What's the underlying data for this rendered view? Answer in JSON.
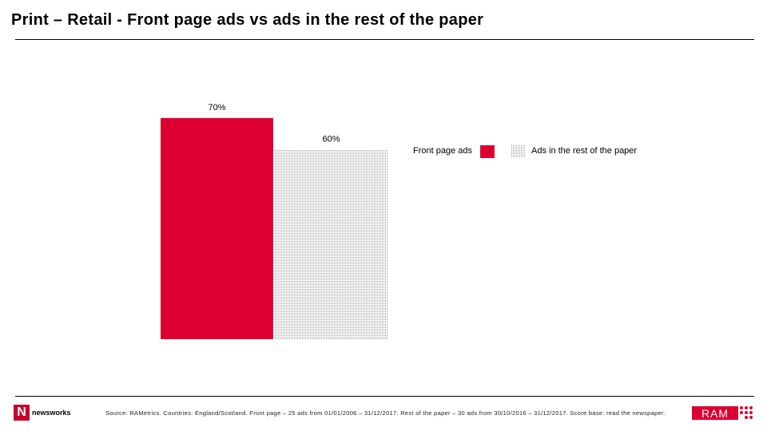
{
  "title": "Print – Retail - Front page ads vs ads in the rest of the paper",
  "chart_data": {
    "type": "bar",
    "categories": [
      ""
    ],
    "series": [
      {
        "name": "Front page ads",
        "values": [
          70
        ],
        "label": "70%",
        "color": "#dc0032",
        "pattern": "solid"
      },
      {
        "name": "Ads in the rest of the paper",
        "values": [
          60
        ],
        "label": "60%",
        "color": "#bfbfbf",
        "pattern": "dotted"
      }
    ],
    "ylim": [
      0,
      100
    ],
    "unit": "%",
    "grid": false,
    "legend": "right"
  },
  "legend": {
    "front_page": "Front page ads",
    "rest_of_paper": "Ads in the rest of the paper"
  },
  "footer": {
    "source": "Source: RAMetrics. Countries: England/Scotland. Front page – 25 ads from 01/01/2006 – 31/12/2017. Rest of the paper – 30 ads from 30/10/2016 – 31/12/2017. Score base: read the newspaper.",
    "newsworks_mark": "N",
    "newsworks_text": "newsworks",
    "ram_text": "RAM"
  }
}
